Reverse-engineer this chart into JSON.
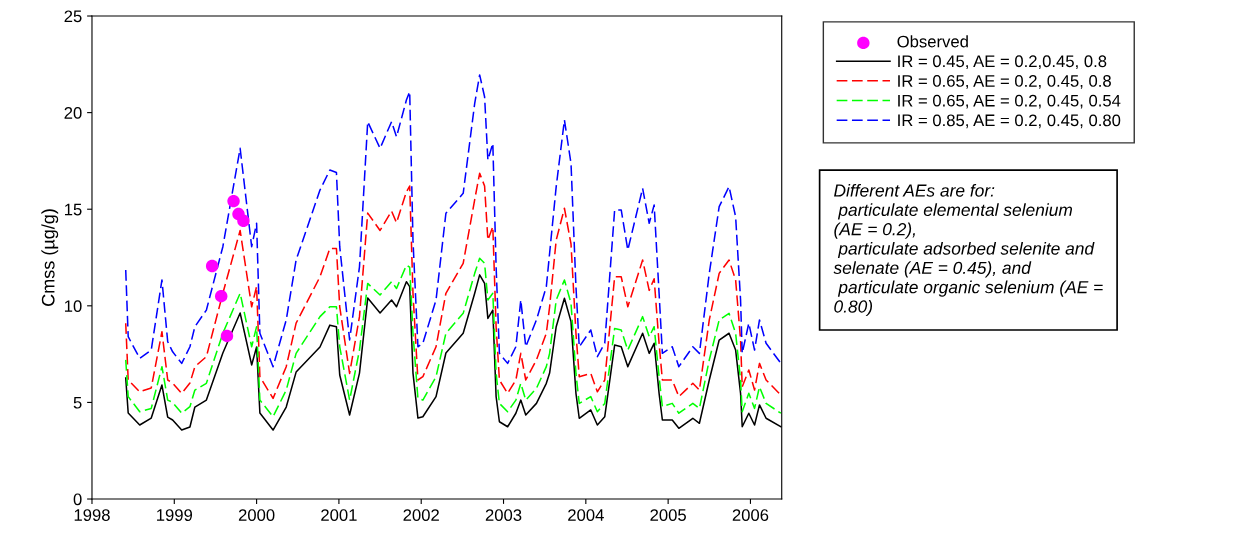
{
  "chart_data": {
    "type": "line",
    "ylabel": "Cmss (µg/g)",
    "xlim": [
      1998,
      2006.38
    ],
    "xticks": [
      1998,
      1999,
      2000,
      2001,
      2002,
      2003,
      2004,
      2005,
      2006
    ],
    "ylim": [
      0,
      25
    ],
    "yticks": [
      0,
      5,
      10,
      15,
      20,
      25
    ],
    "grid": false,
    "legend": "top right",
    "x": [
      1998.41,
      1998.44,
      1998.58,
      1998.72,
      1998.85,
      1998.92,
      1998.98,
      1999.09,
      1999.19,
      1999.25,
      1999.39,
      1999.59,
      1999.8,
      1999.94,
      2000.0,
      2000.04,
      2000.2,
      2000.36,
      2000.48,
      2000.77,
      2000.89,
      2000.97,
      2001.01,
      2001.13,
      2001.25,
      2001.35,
      2001.5,
      2001.64,
      2001.7,
      2001.82,
      2001.86,
      2001.9,
      2001.96,
      2002.02,
      2002.18,
      2002.3,
      2002.51,
      2002.65,
      2002.71,
      2002.77,
      2002.81,
      2002.87,
      2002.91,
      2002.95,
      2003.05,
      2003.15,
      2003.21,
      2003.27,
      2003.4,
      2003.52,
      2003.56,
      2003.64,
      2003.74,
      2003.82,
      2003.88,
      2003.92,
      2004.06,
      2004.14,
      2004.23,
      2004.35,
      2004.43,
      2004.51,
      2004.69,
      2004.77,
      2004.83,
      2004.89,
      2004.93,
      2005.05,
      2005.13,
      2005.3,
      2005.38,
      2005.5,
      2005.62,
      2005.74,
      2005.82,
      2005.88,
      2005.9,
      2005.98,
      2006.05,
      2006.11,
      2006.19,
      2006.37
    ],
    "series": [
      {
        "name": "Observed",
        "type": "scatter",
        "marker": "circle",
        "color": "#ff00ff",
        "x": [
          1999.46,
          1999.57,
          1999.64,
          1999.72,
          1999.78,
          1999.84
        ],
        "values": [
          12.06,
          10.5,
          8.44,
          15.42,
          14.75,
          14.4
        ]
      },
      {
        "name": "IR = 0.45, AE = 0.2,0.45, 0.8",
        "line_style": "solid",
        "color": "#000000",
        "values": [
          6.26,
          4.45,
          3.83,
          4.19,
          5.9,
          4.24,
          4.09,
          3.57,
          3.73,
          4.76,
          5.12,
          7.56,
          9.63,
          6.94,
          7.87,
          4.45,
          3.57,
          4.76,
          6.57,
          7.87,
          9.0,
          8.92,
          6.42,
          4.35,
          6.52,
          10.4,
          9.63,
          10.3,
          9.95,
          11.25,
          10.99,
          6.52,
          4.19,
          4.26,
          5.3,
          7.56,
          8.58,
          10.65,
          11.6,
          11.16,
          9.35,
          9.78,
          5.3,
          4.0,
          3.74,
          4.44,
          5.12,
          4.35,
          4.95,
          5.99,
          6.52,
          8.92,
          10.39,
          9.18,
          5.47,
          4.18,
          4.61,
          3.83,
          4.26,
          7.97,
          7.88,
          6.85,
          8.58,
          7.54,
          8.06,
          5.47,
          4.09,
          4.09,
          3.66,
          4.18,
          3.92,
          6.16,
          8.23,
          8.58,
          7.71,
          5.47,
          3.74,
          4.44,
          3.83,
          4.87,
          4.18,
          3.74
        ]
      },
      {
        "name": "IR = 0.65, AE = 0.2, 0.45, 0.8",
        "line_style": "dashed",
        "color": "#ff0000",
        "values": [
          9.1,
          6.16,
          5.55,
          5.75,
          8.66,
          6.16,
          6.0,
          5.47,
          6.0,
          6.85,
          7.37,
          10.65,
          13.9,
          9.95,
          11.0,
          6.33,
          5.21,
          6.85,
          9.1,
          11.5,
          12.97,
          12.97,
          9.95,
          6.5,
          9.44,
          14.8,
          13.9,
          14.9,
          14.3,
          15.9,
          16.2,
          10.65,
          6.16,
          6.33,
          7.88,
          10.65,
          12.2,
          15.5,
          16.86,
          16.2,
          13.4,
          14.1,
          8.92,
          6.16,
          5.47,
          6.16,
          7.54,
          6.16,
          7.2,
          8.58,
          9.95,
          13.4,
          15.05,
          13.2,
          8.58,
          6.33,
          6.5,
          5.55,
          6.16,
          11.5,
          11.5,
          9.95,
          12.37,
          10.8,
          11.4,
          8.06,
          6.16,
          6.16,
          5.3,
          5.99,
          5.64,
          9.27,
          11.68,
          12.37,
          11.34,
          8.23,
          5.81,
          6.68,
          5.64,
          7.02,
          6.16,
          5.38
        ]
      },
      {
        "name": "IR = 0.65, AE = 0.2, 0.45, 0.54",
        "line_style": "dashed",
        "color": "#00ff00",
        "values": [
          7.2,
          5.3,
          4.52,
          4.69,
          6.85,
          5.12,
          5.0,
          4.44,
          4.78,
          5.64,
          5.99,
          8.58,
          10.65,
          7.88,
          8.92,
          5.12,
          4.26,
          5.64,
          7.54,
          9.44,
          9.95,
          9.95,
          7.88,
          5.12,
          7.71,
          11.16,
          10.56,
          11.25,
          10.9,
          12.1,
          12.0,
          8.58,
          5.21,
          5.12,
          6.33,
          8.58,
          9.61,
          11.68,
          12.46,
          12.2,
          10.3,
          10.65,
          6.5,
          4.95,
          4.52,
          5.12,
          5.99,
          5.12,
          5.73,
          6.85,
          7.54,
          10.3,
          11.34,
          10.13,
          6.5,
          4.95,
          5.3,
          4.52,
          4.95,
          8.83,
          8.75,
          7.71,
          9.44,
          8.4,
          8.92,
          6.33,
          4.78,
          4.95,
          4.44,
          4.95,
          4.69,
          7.2,
          9.27,
          9.61,
          8.58,
          6.16,
          4.52,
          5.47,
          4.69,
          5.81,
          4.95,
          4.44
        ]
      },
      {
        "name": "IR = 0.85, AE = 0.2, 0.45, 0.80",
        "line_style": "dashed",
        "color": "#0000ff",
        "values": [
          11.85,
          8.4,
          7.28,
          7.71,
          11.34,
          8.14,
          7.62,
          7.02,
          7.88,
          8.92,
          9.78,
          13.06,
          18.15,
          13.06,
          14.27,
          8.58,
          6.85,
          9.27,
          12.37,
          15.99,
          17.03,
          16.9,
          13.06,
          8.23,
          12.02,
          19.53,
          18.15,
          19.53,
          18.75,
          20.65,
          21.08,
          13.4,
          7.88,
          8.06,
          10.3,
          14.79,
          15.82,
          20.48,
          21.95,
          20.82,
          17.55,
          18.41,
          12.02,
          7.54,
          7.02,
          7.88,
          10.3,
          7.88,
          9.27,
          10.99,
          12.72,
          16.17,
          19.62,
          17.37,
          10.99,
          7.88,
          8.75,
          7.37,
          8.06,
          14.96,
          14.96,
          12.89,
          16.08,
          14.27,
          15.22,
          10.65,
          7.54,
          7.88,
          6.85,
          7.88,
          7.54,
          11.68,
          15.13,
          16.17,
          14.61,
          10.3,
          7.54,
          9.1,
          7.71,
          9.27,
          8.06,
          7.02
        ]
      }
    ],
    "annotations": [
      "Different AEs are for:\n particulate elemental selenium\n(AE = 0.2),\n particulate adsorbed selenite and\nselenate (AE = 0.45), and\n particulate organic selenium (AE =\n0.80)"
    ]
  }
}
